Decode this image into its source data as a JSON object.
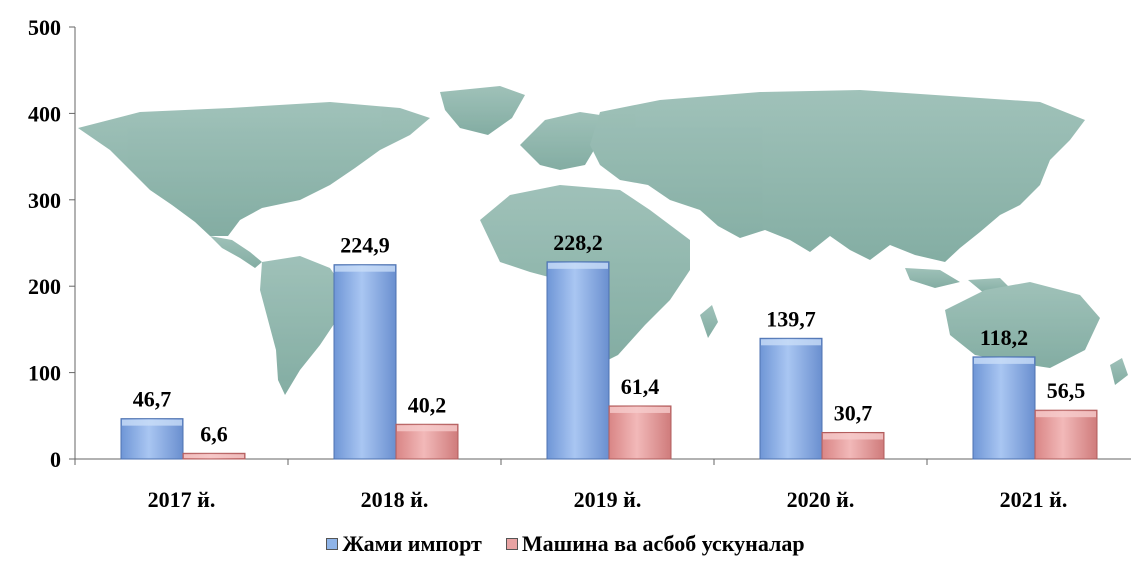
{
  "chart_data": {
    "type": "bar",
    "categories": [
      "2017 й.",
      "2018 й.",
      "2019 й.",
      "2020 й.",
      "2021 й."
    ],
    "series": [
      {
        "name": "Жами импорт",
        "values": [
          46.7,
          224.9,
          228.2,
          139.7,
          118.2
        ],
        "labels": [
          "46,7",
          "224,9",
          "228,2",
          "139,7",
          "118,2"
        ],
        "color": "#8fb4e8"
      },
      {
        "name": "Машина ва асбоб ускуналар",
        "values": [
          6.6,
          40.2,
          61.4,
          30.7,
          56.5
        ],
        "labels": [
          "6,6",
          "40,2",
          "61,4",
          "30,7",
          "56,5"
        ],
        "color": "#e8a3a3"
      }
    ],
    "ylim": [
      0,
      500
    ],
    "yticks": [
      "0",
      "100",
      "200",
      "300",
      "400",
      "500"
    ],
    "grid": false,
    "legend_position": "bottom",
    "background_image": "world-map"
  }
}
